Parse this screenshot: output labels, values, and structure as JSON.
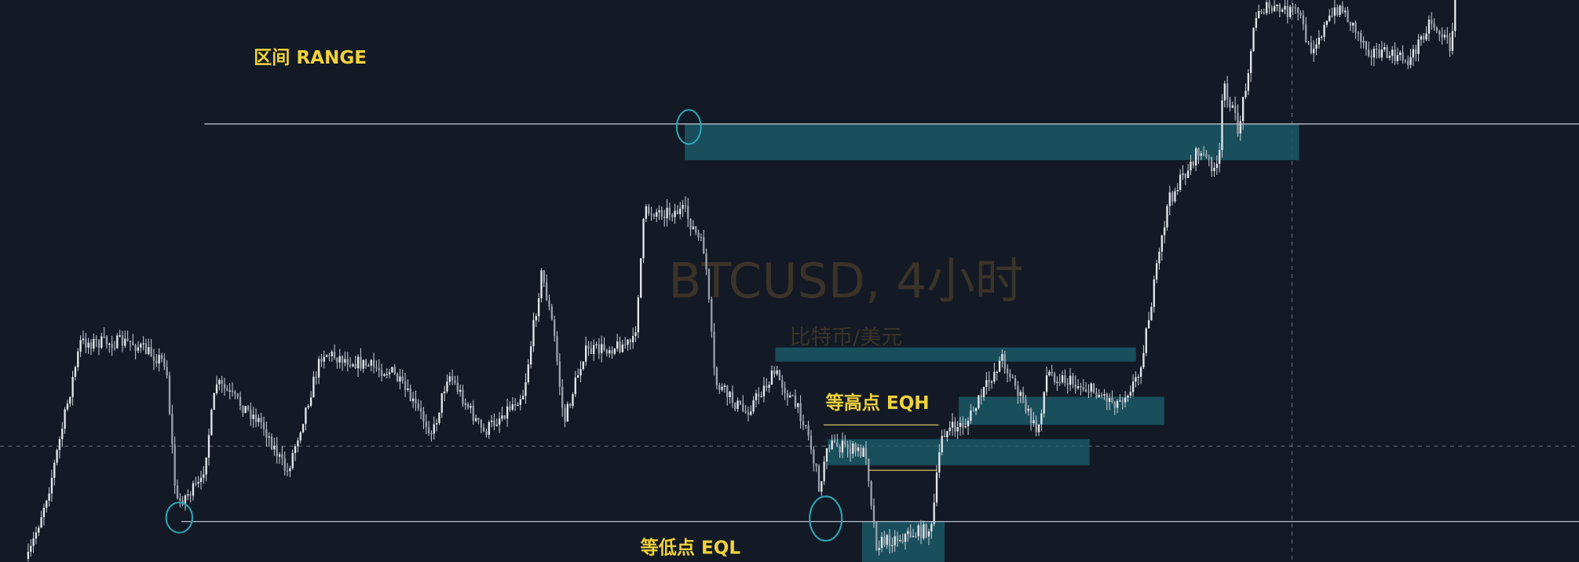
{
  "watermark": {
    "symbol": "BTCUSD, 4小时",
    "description": "比特币/美元"
  },
  "annotations": {
    "range": "区间 RANGE",
    "eqh": "等高点 EQH",
    "eql": "等低点 EQL"
  }
}
